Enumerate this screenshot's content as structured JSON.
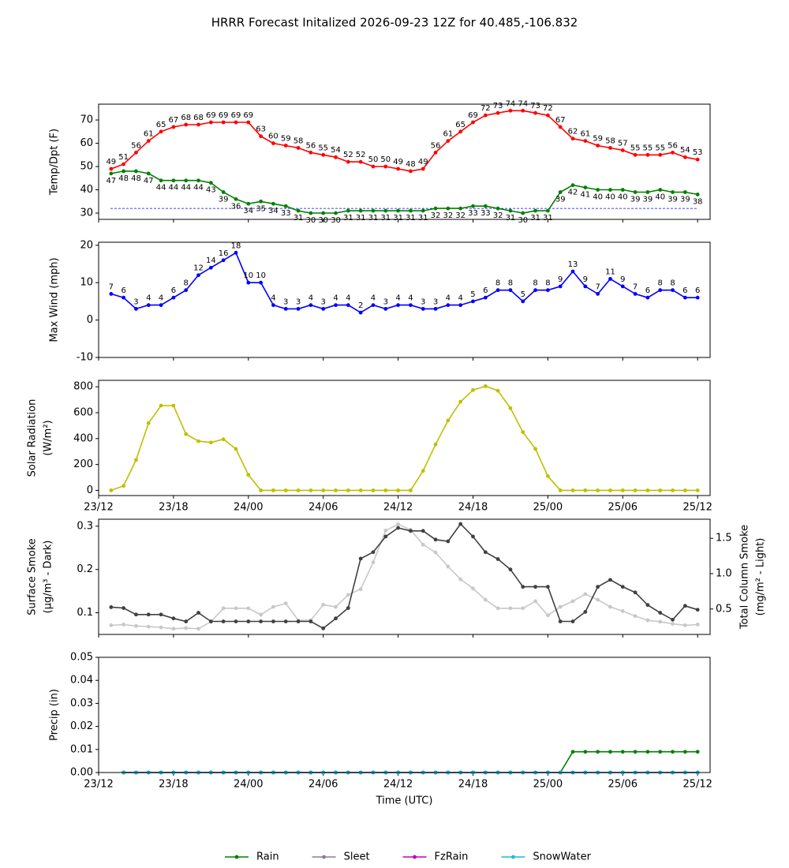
{
  "title": "HRRR Forecast Initalized 2026-09-23 12Z for 40.485,-106.832",
  "chart_data": [
    {
      "type": "line",
      "ylabel": [
        "Temp/Dpt (F)"
      ],
      "xlim": [
        0,
        49
      ],
      "xticks": [
        0,
        6,
        12,
        18,
        24,
        30,
        36,
        42,
        48
      ],
      "ylim": [
        27.3,
        76.8
      ],
      "yticks": [
        30,
        40,
        50,
        60,
        70
      ],
      "x": [
        1,
        2,
        3,
        4,
        5,
        6,
        7,
        8,
        9,
        10,
        11,
        12,
        13,
        14,
        15,
        16,
        17,
        18,
        19,
        20,
        21,
        22,
        23,
        24,
        25,
        26,
        27,
        28,
        29,
        30,
        31,
        32,
        33,
        34,
        35,
        36,
        37,
        38,
        39,
        40,
        41,
        42,
        43,
        44,
        45,
        46,
        47,
        48
      ],
      "reference_lines": [
        {
          "value": 32,
          "color": "#0000ff",
          "style": "dashed"
        }
      ],
      "series": [
        {
          "color": "#ff0000",
          "labels": "above",
          "values": [
            49,
            51,
            56,
            61,
            65,
            67,
            68,
            68,
            69,
            69,
            69,
            69,
            63,
            60,
            59,
            58,
            56,
            55,
            54,
            52,
            52,
            50,
            50,
            49,
            48,
            49,
            56,
            61,
            65,
            69,
            72,
            73,
            74,
            74,
            73,
            72,
            67,
            62,
            61,
            59,
            58,
            57,
            55,
            55,
            55,
            56,
            54,
            53
          ]
        },
        {
          "color": "#008000",
          "labels": "below",
          "values": [
            47,
            48,
            48,
            47,
            44,
            44,
            44,
            44,
            43,
            39,
            36,
            34,
            35,
            34,
            33,
            31,
            30,
            30,
            30,
            31,
            31,
            31,
            31,
            31,
            31,
            31,
            32,
            32,
            32,
            33,
            33,
            32,
            31,
            30,
            31,
            31,
            39,
            42,
            41,
            40,
            40,
            40,
            39,
            39,
            40,
            39,
            39,
            38
          ]
        }
      ]
    },
    {
      "type": "line",
      "ylabel": [
        "Max Wind (mph)"
      ],
      "xlim": [
        0,
        49
      ],
      "xticks": [
        0,
        6,
        12,
        18,
        24,
        30,
        36,
        42,
        48
      ],
      "ylim": [
        -10,
        20.8
      ],
      "yticks": [
        -10,
        0,
        10,
        20
      ],
      "x": [
        1,
        2,
        3,
        4,
        5,
        6,
        7,
        8,
        9,
        10,
        11,
        12,
        13,
        14,
        15,
        16,
        17,
        18,
        19,
        20,
        21,
        22,
        23,
        24,
        25,
        26,
        27,
        28,
        29,
        30,
        31,
        32,
        33,
        34,
        35,
        36,
        37,
        38,
        39,
        40,
        41,
        42,
        43,
        44,
        45,
        46,
        47,
        48
      ],
      "series": [
        {
          "color": "#0000ff",
          "labels": "above",
          "values": [
            7,
            6,
            3,
            4,
            4,
            6,
            8,
            12,
            14,
            16,
            18,
            10,
            10,
            4,
            3,
            3,
            4,
            3,
            4,
            4,
            2,
            4,
            3,
            4,
            4,
            3,
            3,
            4,
            4,
            5,
            6,
            8,
            8,
            5,
            8,
            8,
            9,
            13,
            9,
            7,
            11,
            9,
            7,
            6,
            8,
            8,
            6,
            6
          ]
        }
      ]
    },
    {
      "type": "line",
      "ylabel": [
        "Solar Radiation",
        "(W/m²)"
      ],
      "xlim": [
        0,
        49
      ],
      "xticks": [
        {
          "value": 0,
          "label": "23/12"
        },
        {
          "value": 6,
          "label": "23/18"
        },
        {
          "value": 12,
          "label": "24/00"
        },
        {
          "value": 18,
          "label": "24/06"
        },
        {
          "value": 24,
          "label": "24/12"
        },
        {
          "value": 30,
          "label": "24/18"
        },
        {
          "value": 36,
          "label": "25/00"
        },
        {
          "value": 42,
          "label": "25/06"
        },
        {
          "value": 48,
          "label": "25/12"
        }
      ],
      "ylim": [
        -40,
        850
      ],
      "yticks": [
        0,
        200,
        400,
        600,
        800
      ],
      "x": [
        1,
        2,
        3,
        4,
        5,
        6,
        7,
        8,
        9,
        10,
        11,
        12,
        13,
        14,
        15,
        16,
        17,
        18,
        19,
        20,
        21,
        22,
        23,
        24,
        25,
        26,
        27,
        28,
        29,
        30,
        31,
        32,
        33,
        34,
        35,
        36,
        37,
        38,
        39,
        40,
        41,
        42,
        43,
        44,
        45,
        46,
        47,
        48
      ],
      "series": [
        {
          "color": "#bfbf00",
          "values": [
            0,
            35,
            235,
            520,
            655,
            655,
            435,
            380,
            370,
            395,
            320,
            120,
            0,
            0,
            0,
            0,
            0,
            0,
            0,
            0,
            0,
            0,
            0,
            0,
            0,
            150,
            355,
            540,
            685,
            775,
            805,
            770,
            635,
            450,
            320,
            110,
            0,
            0,
            0,
            0,
            0,
            0,
            0,
            0,
            0,
            0,
            0,
            0
          ]
        }
      ]
    },
    {
      "type": "line",
      "ylabel": [
        "Surface Smoke",
        "(µg/m³ - Dark)"
      ],
      "y2label": [
        "Total Column Smoke",
        "(mg/m² - Light)"
      ],
      "xlim": [
        0,
        49
      ],
      "xticks": [
        0,
        6,
        12,
        18,
        24,
        30,
        36,
        42,
        48
      ],
      "ylim": [
        0.05,
        0.316
      ],
      "yticks": [
        0.1,
        0.2,
        0.3
      ],
      "y2lim": [
        0.14,
        1.77
      ],
      "y2ticks": [
        0.5,
        {
          "value": 1,
          "label": "1.0"
        },
        1.5
      ],
      "x": [
        1,
        2,
        3,
        4,
        5,
        6,
        7,
        8,
        9,
        10,
        11,
        12,
        13,
        14,
        15,
        16,
        17,
        18,
        19,
        20,
        21,
        22,
        23,
        24,
        25,
        26,
        27,
        28,
        29,
        30,
        31,
        32,
        33,
        34,
        35,
        36,
        37,
        38,
        39,
        40,
        41,
        42,
        43,
        44,
        45,
        46,
        47,
        48
      ],
      "series": [
        {
          "color": "#c8c8c8",
          "axis": "y2",
          "values": [
            0.27,
            0.28,
            0.26,
            0.25,
            0.24,
            0.22,
            0.23,
            0.22,
            0.32,
            0.51,
            0.51,
            0.51,
            0.42,
            0.53,
            0.58,
            0.34,
            0.34,
            0.56,
            0.53,
            0.7,
            0.78,
            1.16,
            1.61,
            1.7,
            1.62,
            1.41,
            1.3,
            1.1,
            0.92,
            0.79,
            0.63,
            0.51,
            0.51,
            0.51,
            0.61,
            0.41,
            0.53,
            0.61,
            0.71,
            0.63,
            0.53,
            0.47,
            0.4,
            0.34,
            0.32,
            0.29,
            0.27,
            0.28
          ]
        },
        {
          "color": "#404040",
          "values": [
            0.113,
            0.111,
            0.096,
            0.096,
            0.096,
            0.087,
            0.08,
            0.1,
            0.08,
            0.08,
            0.08,
            0.08,
            0.08,
            0.08,
            0.08,
            0.08,
            0.08,
            0.064,
            0.087,
            0.111,
            0.225,
            0.24,
            0.276,
            0.296,
            0.289,
            0.289,
            0.269,
            0.265,
            0.305,
            0.276,
            0.24,
            0.224,
            0.2,
            0.16,
            0.16,
            0.16,
            0.08,
            0.08,
            0.102,
            0.16,
            0.176,
            0.16,
            0.147,
            0.118,
            0.1,
            0.084,
            0.116,
            0.107
          ]
        }
      ]
    },
    {
      "type": "line",
      "ylabel": [
        "Precip (in)"
      ],
      "xlabel": "Time (UTC)",
      "legend": "below",
      "xlim": [
        0,
        49
      ],
      "xticks": [
        {
          "value": 0,
          "label": "23/12"
        },
        {
          "value": 6,
          "label": "23/18"
        },
        {
          "value": 12,
          "label": "24/00"
        },
        {
          "value": 18,
          "label": "24/06"
        },
        {
          "value": 24,
          "label": "24/12"
        },
        {
          "value": 30,
          "label": "24/18"
        },
        {
          "value": 36,
          "label": "25/00"
        },
        {
          "value": 42,
          "label": "25/06"
        },
        {
          "value": 48,
          "label": "25/12"
        }
      ],
      "ylim": [
        0,
        0.05
      ],
      "yticks": [
        {
          "value": 0,
          "label": "0.00"
        },
        0.01,
        0.02,
        0.03,
        0.04,
        0.05
      ],
      "x": [
        2,
        3,
        4,
        5,
        6,
        7,
        8,
        9,
        10,
        11,
        12,
        13,
        14,
        15,
        16,
        17,
        18,
        19,
        20,
        21,
        22,
        23,
        24,
        25,
        26,
        27,
        28,
        29,
        30,
        31,
        32,
        33,
        34,
        35,
        36,
        37,
        38,
        39,
        40,
        41,
        42,
        43,
        44,
        45,
        46,
        47,
        48
      ],
      "series": [
        {
          "name": "Rain",
          "color": "#008000",
          "values": [
            0,
            0,
            0,
            0,
            0,
            0,
            0,
            0,
            0,
            0,
            0,
            0,
            0,
            0,
            0,
            0,
            0,
            0,
            0,
            0,
            0,
            0,
            0,
            0,
            0,
            0,
            0,
            0,
            0,
            0,
            0,
            0,
            0,
            0,
            0,
            0,
            0.009,
            0.009,
            0.009,
            0.009,
            0.009,
            0.009,
            0.009,
            0.009,
            0.009,
            0.009,
            0.009
          ]
        },
        {
          "name": "Sleet",
          "color": "#8c7aa8",
          "values": [
            0,
            0,
            0,
            0,
            0,
            0,
            0,
            0,
            0,
            0,
            0,
            0,
            0,
            0,
            0,
            0,
            0,
            0,
            0,
            0,
            0,
            0,
            0,
            0,
            0,
            0,
            0,
            0,
            0,
            0,
            0,
            0,
            0,
            0,
            0,
            0,
            0,
            0,
            0,
            0,
            0,
            0,
            0,
            0,
            0,
            0,
            0
          ]
        },
        {
          "name": "FzRain",
          "color": "#c000c0",
          "values": [
            0,
            0,
            0,
            0,
            0,
            0,
            0,
            0,
            0,
            0,
            0,
            0,
            0,
            0,
            0,
            0,
            0,
            0,
            0,
            0,
            0,
            0,
            0,
            0,
            0,
            0,
            0,
            0,
            0,
            0,
            0,
            0,
            0,
            0,
            0,
            0,
            0,
            0,
            0,
            0,
            0,
            0,
            0,
            0,
            0,
            0,
            0
          ]
        },
        {
          "name": "SnowWater",
          "color": "#17becf",
          "values": [
            0,
            0,
            0,
            0,
            0,
            0,
            0,
            0,
            0,
            0,
            0,
            0,
            0,
            0,
            0,
            0,
            0,
            0,
            0,
            0,
            0,
            0,
            0,
            0,
            0,
            0,
            0,
            0,
            0,
            0,
            0,
            0,
            0,
            0,
            0,
            0,
            0,
            0,
            0,
            0,
            0,
            0,
            0,
            0,
            0,
            0,
            0
          ]
        }
      ]
    }
  ]
}
